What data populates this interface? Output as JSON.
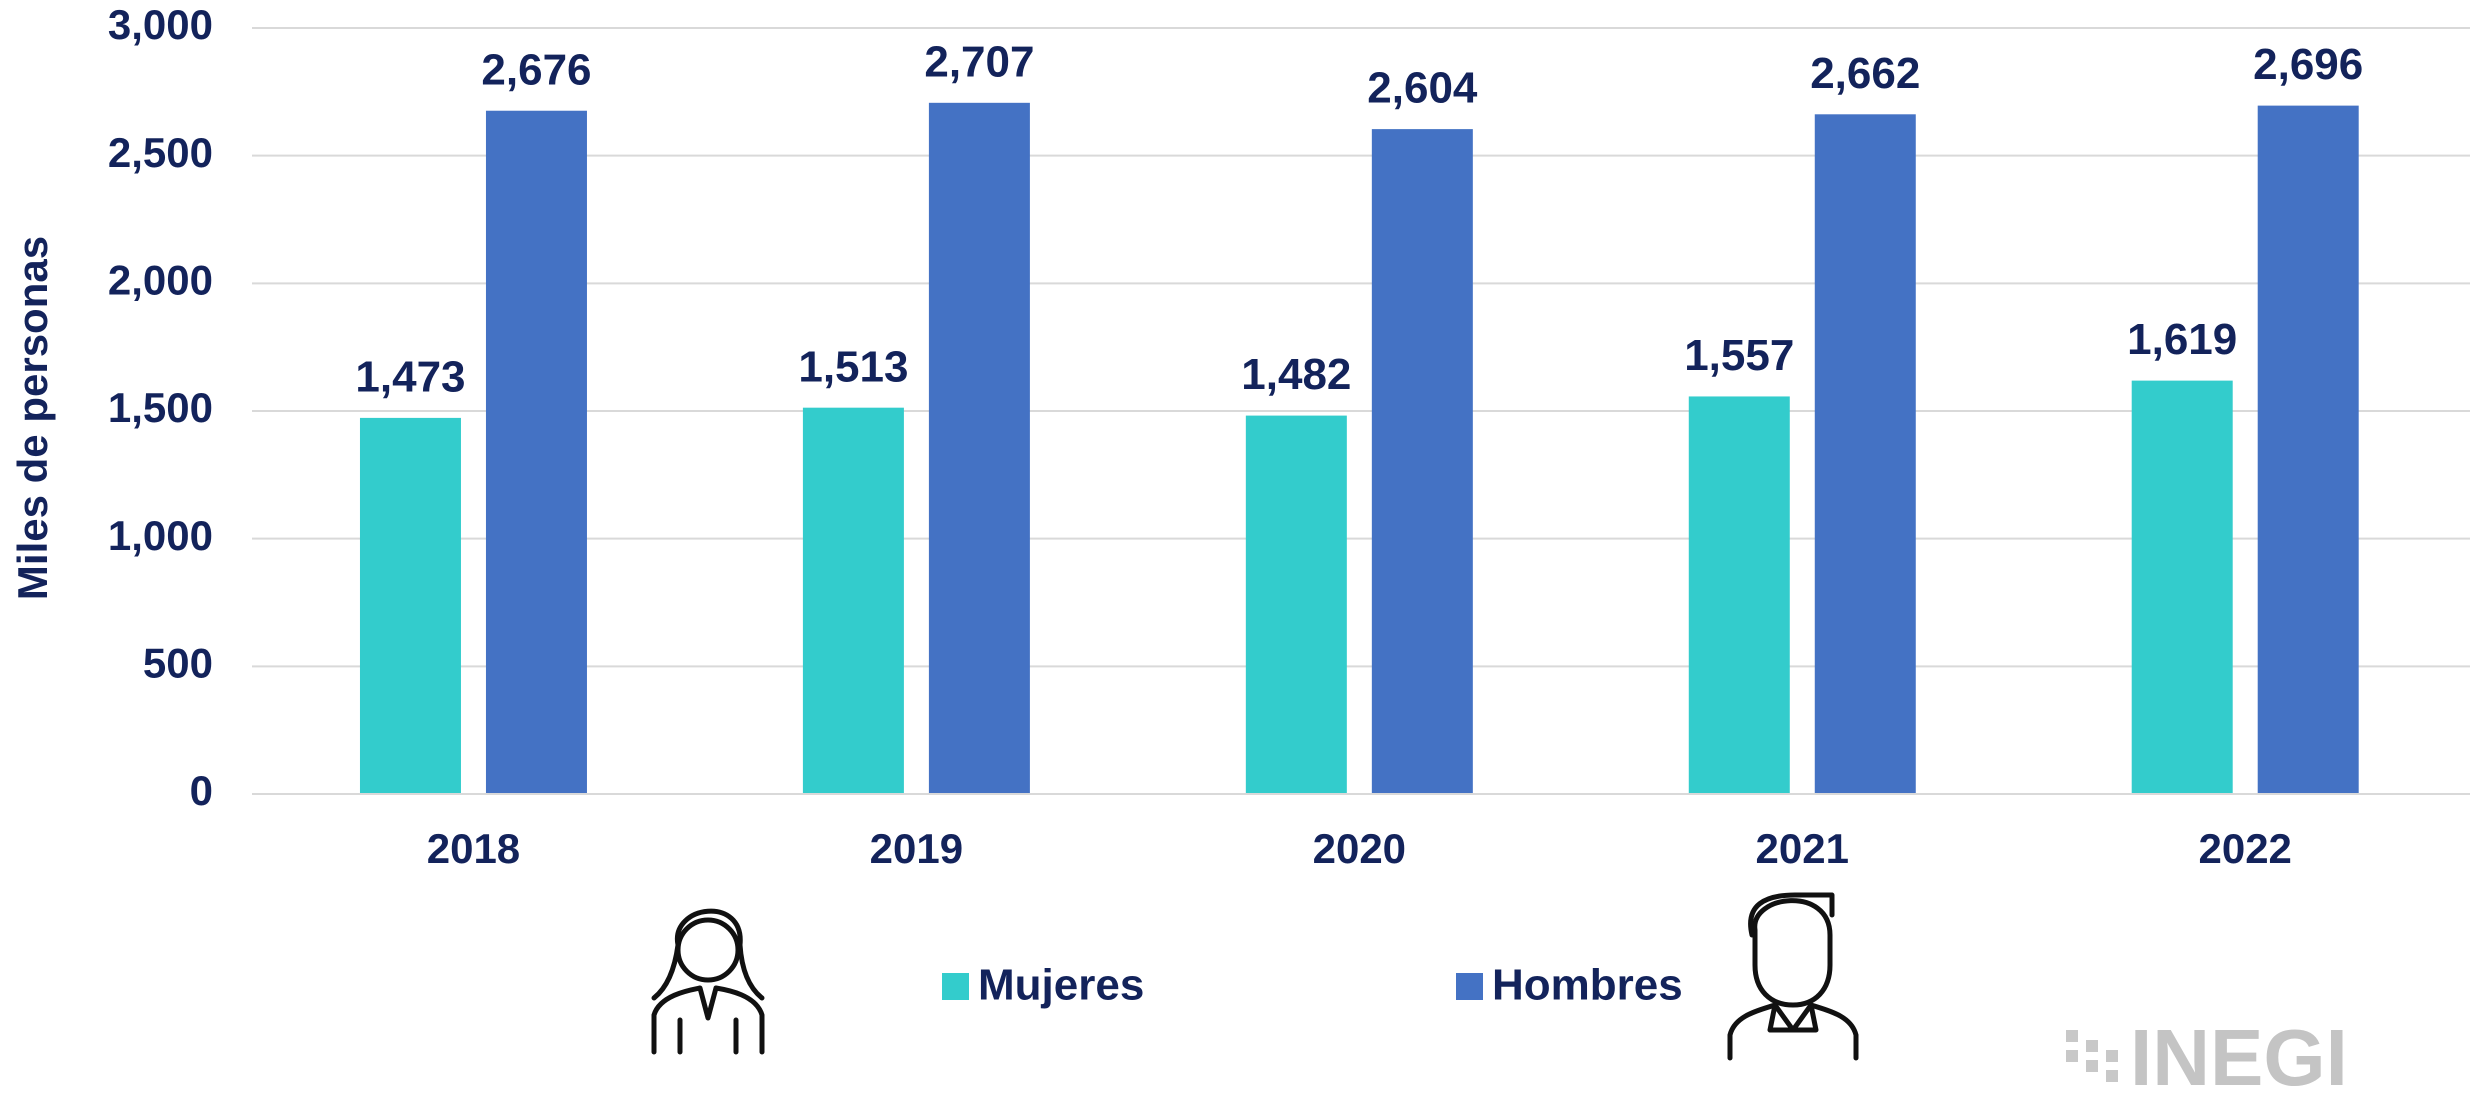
{
  "chart_data": {
    "type": "bar",
    "y_axis_label": "Miles de personas",
    "categories": [
      "2018",
      "2019",
      "2020",
      "2021",
      "2022"
    ],
    "series": [
      {
        "name": "Mujeres",
        "color": "#33cccc",
        "values": [
          1473,
          1513,
          1482,
          1557,
          1619
        ],
        "value_labels": [
          "1,473",
          "1,513",
          "1,482",
          "1,557",
          "1,619"
        ]
      },
      {
        "name": "Hombres",
        "color": "#4472c4",
        "values": [
          2676,
          2707,
          2604,
          2662,
          2696
        ],
        "value_labels": [
          "2,676",
          "2,707",
          "2,604",
          "2,662",
          "2,696"
        ]
      }
    ],
    "ylim": [
      0,
      3000
    ],
    "yticks": [
      0,
      500,
      {
        "value": 1000,
        "label": "1,000"
      },
      {
        "value": 1500,
        "label": "1,500"
      },
      {
        "value": 2000,
        "label": "2,000"
      },
      {
        "value": 2500,
        "label": "2,500"
      },
      {
        "value": 3000,
        "label": "3,000"
      }
    ],
    "grid": true,
    "legend": "bottom",
    "logo": "INEGI"
  }
}
